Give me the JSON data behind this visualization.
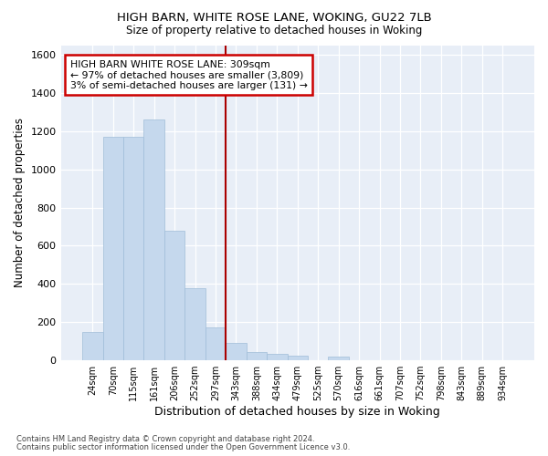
{
  "title1": "HIGH BARN, WHITE ROSE LANE, WOKING, GU22 7LB",
  "title2": "Size of property relative to detached houses in Woking",
  "xlabel": "Distribution of detached houses by size in Woking",
  "ylabel": "Number of detached properties",
  "categories": [
    "24sqm",
    "70sqm",
    "115sqm",
    "161sqm",
    "206sqm",
    "252sqm",
    "297sqm",
    "343sqm",
    "388sqm",
    "434sqm",
    "479sqm",
    "525sqm",
    "570sqm",
    "616sqm",
    "661sqm",
    "707sqm",
    "752sqm",
    "798sqm",
    "843sqm",
    "889sqm",
    "934sqm"
  ],
  "values": [
    148,
    1172,
    1172,
    1262,
    678,
    375,
    168,
    90,
    40,
    33,
    22,
    0,
    15,
    0,
    0,
    0,
    0,
    0,
    0,
    0,
    0
  ],
  "bar_color": "#c5d8ed",
  "bar_edge_color": "#a0bdd8",
  "vline_x": 6.5,
  "vline_color": "#aa0000",
  "ylim": [
    0,
    1650
  ],
  "yticks": [
    0,
    200,
    400,
    600,
    800,
    1000,
    1200,
    1400,
    1600
  ],
  "annotation_title": "HIGH BARN WHITE ROSE LANE: 309sqm",
  "annotation_line1": "← 97% of detached houses are smaller (3,809)",
  "annotation_line2": "3% of semi-detached houses are larger (131) →",
  "annotation_box_color": "#cc0000",
  "footer1": "Contains HM Land Registry data © Crown copyright and database right 2024.",
  "footer2": "Contains public sector information licensed under the Open Government Licence v3.0.",
  "bg_color": "#ffffff",
  "plot_bg_color": "#e8eef7"
}
